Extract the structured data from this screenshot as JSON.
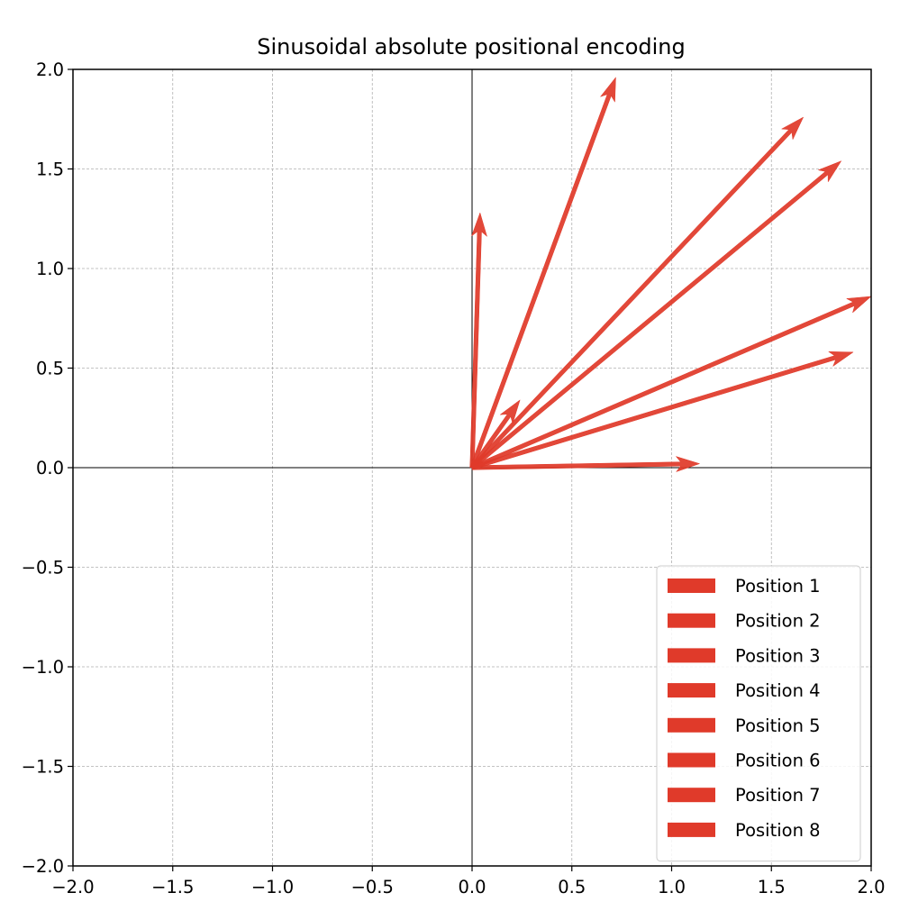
{
  "chart_data": {
    "type": "quiver",
    "title": "Sinusoidal absolute positional encoding",
    "xlabel": "",
    "ylabel": "",
    "xlim": [
      -2.0,
      2.0
    ],
    "ylim": [
      -2.0,
      2.0
    ],
    "xticks": [
      "−2.0",
      "−1.5",
      "−1.0",
      "−0.5",
      "0.0",
      "0.5",
      "1.0",
      "1.5",
      "2.0"
    ],
    "yticks": [
      "−2.0",
      "−1.5",
      "−1.0",
      "−0.5",
      "0.0",
      "0.5",
      "1.0",
      "1.5",
      "2.0"
    ],
    "grid": true,
    "legend_position": "lower-right",
    "arrow_color": "#e03a2a",
    "series": [
      {
        "name": "Position 1",
        "x": 0.0,
        "y": 0.0,
        "u": 1.14,
        "v": 0.02
      },
      {
        "name": "Position 2",
        "x": 0.0,
        "y": 0.0,
        "u": 0.04,
        "v": 1.28
      },
      {
        "name": "Position 3",
        "x": 0.0,
        "y": 0.0,
        "u": 0.72,
        "v": 1.96
      },
      {
        "name": "Position 4",
        "x": 0.0,
        "y": 0.0,
        "u": 1.66,
        "v": 1.76
      },
      {
        "name": "Position 5",
        "x": 0.0,
        "y": 0.0,
        "u": 1.85,
        "v": 1.54
      },
      {
        "name": "Position 6",
        "x": 0.0,
        "y": 0.0,
        "u": 2.0,
        "v": 0.86
      },
      {
        "name": "Position 7",
        "x": 0.0,
        "y": 0.0,
        "u": 1.91,
        "v": 0.58
      },
      {
        "name": "Position 8",
        "x": 0.0,
        "y": 0.0,
        "u": 0.24,
        "v": 0.34
      }
    ]
  }
}
